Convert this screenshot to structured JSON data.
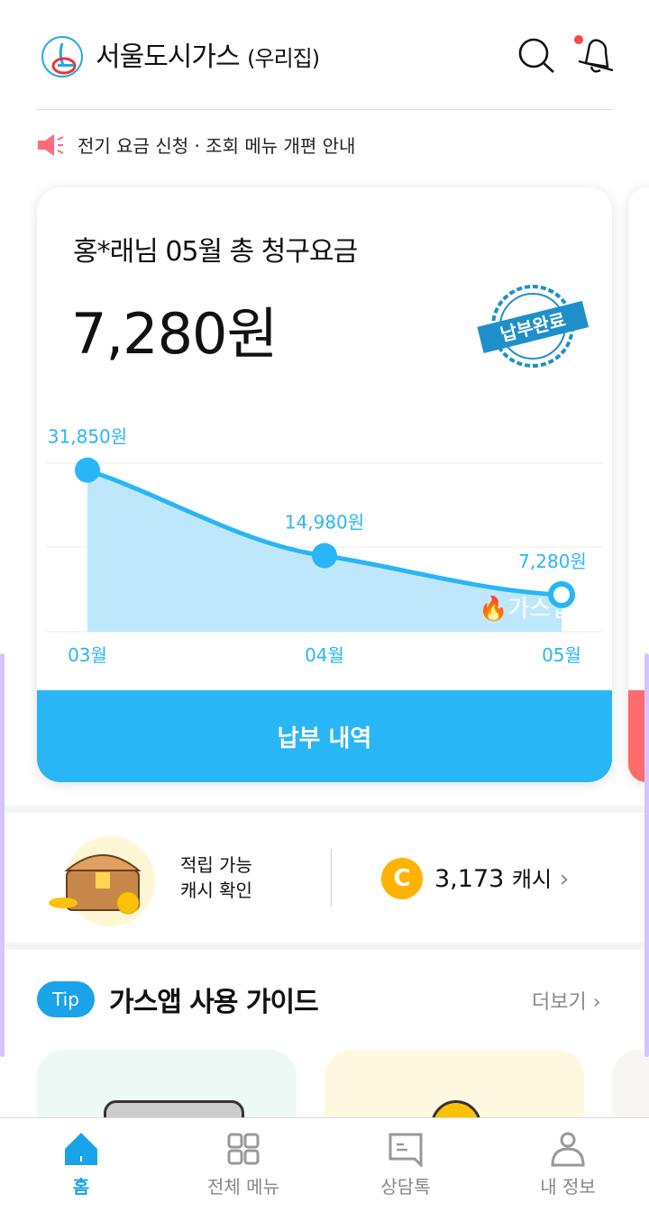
{
  "header": {
    "title": "서울도시가스",
    "subtitle": "(우리집)",
    "icons": [
      "search-icon",
      "bell-icon"
    ],
    "notification_dot_color": "#f44"
  },
  "notice": {
    "icon": "megaphone-icon",
    "text": "전기 요금 신청 · 조회 메뉴 개편 안내"
  },
  "bill_card": {
    "subtitle": "홍*래님 05월 총 청구요금",
    "amount": "7,280원",
    "stamp": "납부완료",
    "button": "납부 내역",
    "watermark": "가스앱"
  },
  "chart_data": {
    "type": "area",
    "categories": [
      "03월",
      "04월",
      "05월"
    ],
    "values": [
      31850,
      14980,
      7280
    ],
    "labels": [
      "31,850원",
      "14,980원",
      "7,280원"
    ],
    "color": "#29b6f6"
  },
  "cash": {
    "label_line1": "적립 가능",
    "label_line2": "캐시 확인",
    "coin": "C",
    "amount": "3,173",
    "unit": "캐시"
  },
  "guide": {
    "tip": "Tip",
    "title": "가스앱 사용 가이드",
    "more": "더보기"
  },
  "nav": [
    {
      "label": "홈",
      "icon": "home-icon",
      "active": true
    },
    {
      "label": "전체 메뉴",
      "icon": "grid-icon"
    },
    {
      "label": "상담톡",
      "icon": "chat-icon"
    },
    {
      "label": "내 정보",
      "icon": "user-icon"
    }
  ]
}
